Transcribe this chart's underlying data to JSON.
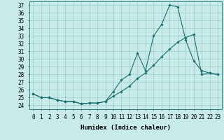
{
  "title": "",
  "xlabel": "Humidex (Indice chaleur)",
  "background_color": "#c8eae8",
  "grid_color": "#99cccc",
  "line_color": "#1a6e6e",
  "xlim": [
    -0.5,
    23.5
  ],
  "ylim": [
    23.5,
    37.5
  ],
  "yticks": [
    24,
    25,
    26,
    27,
    28,
    29,
    30,
    31,
    32,
    33,
    34,
    35,
    36,
    37
  ],
  "xticks": [
    0,
    1,
    2,
    3,
    4,
    5,
    6,
    7,
    8,
    9,
    10,
    11,
    12,
    13,
    14,
    15,
    16,
    17,
    18,
    19,
    20,
    21,
    22,
    23
  ],
  "xtick_labels": [
    "0",
    "1",
    "2",
    "3",
    "4",
    "5",
    "6",
    "7",
    "8",
    "9",
    "10",
    "11",
    "12",
    "13",
    "14",
    "15",
    "16",
    "17",
    "18",
    "19",
    "20",
    "21",
    "22",
    "23"
  ],
  "series1_x": [
    0,
    1,
    2,
    3,
    4,
    5,
    6,
    7,
    8,
    9,
    10,
    11,
    12,
    13,
    14,
    15,
    16,
    17,
    18,
    19,
    20,
    21,
    22,
    23
  ],
  "series1_y": [
    25.5,
    25.0,
    25.0,
    24.7,
    24.5,
    24.5,
    24.2,
    24.3,
    24.3,
    24.5,
    25.8,
    27.3,
    28.0,
    30.8,
    28.5,
    33.0,
    34.5,
    37.0,
    36.8,
    32.5,
    29.8,
    28.5,
    28.2,
    28.0
  ],
  "series2_x": [
    0,
    1,
    2,
    3,
    4,
    5,
    6,
    7,
    8,
    9,
    10,
    11,
    12,
    13,
    14,
    15,
    16,
    17,
    18,
    19,
    20,
    21,
    22,
    23
  ],
  "series2_y": [
    25.5,
    25.0,
    25.0,
    24.7,
    24.5,
    24.5,
    24.2,
    24.3,
    24.3,
    24.5,
    25.2,
    25.8,
    26.5,
    27.5,
    28.2,
    29.2,
    30.3,
    31.3,
    32.2,
    32.8,
    33.2,
    28.0,
    28.2,
    28.0
  ],
  "font_size_ticks": 5.5,
  "font_size_xlabel": 6.5,
  "marker_size": 1.8,
  "line_width": 0.8
}
